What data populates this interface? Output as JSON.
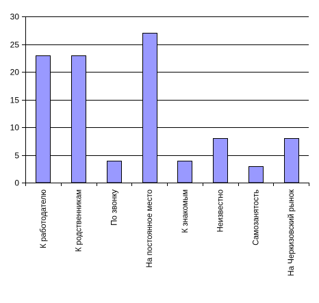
{
  "chart_data": {
    "type": "bar",
    "title": "",
    "xlabel": "",
    "ylabel": "",
    "categories": [
      "К работодателю",
      "К родственникам",
      "По звонку",
      "На постоянное место",
      "К знакомым",
      "Неизвестно",
      "Самозанятость",
      "На Черкизовский рынок"
    ],
    "values": [
      23,
      23,
      4,
      27,
      4,
      8,
      3,
      8
    ],
    "ylim": [
      0,
      30
    ],
    "yticks": [
      0,
      5,
      10,
      15,
      20,
      25,
      30
    ],
    "grid": true,
    "legend": "none",
    "colors": {
      "bar_fill": "#9999ff",
      "bar_stroke": "#000000",
      "grid": "#000000",
      "axis": "#000000"
    }
  }
}
